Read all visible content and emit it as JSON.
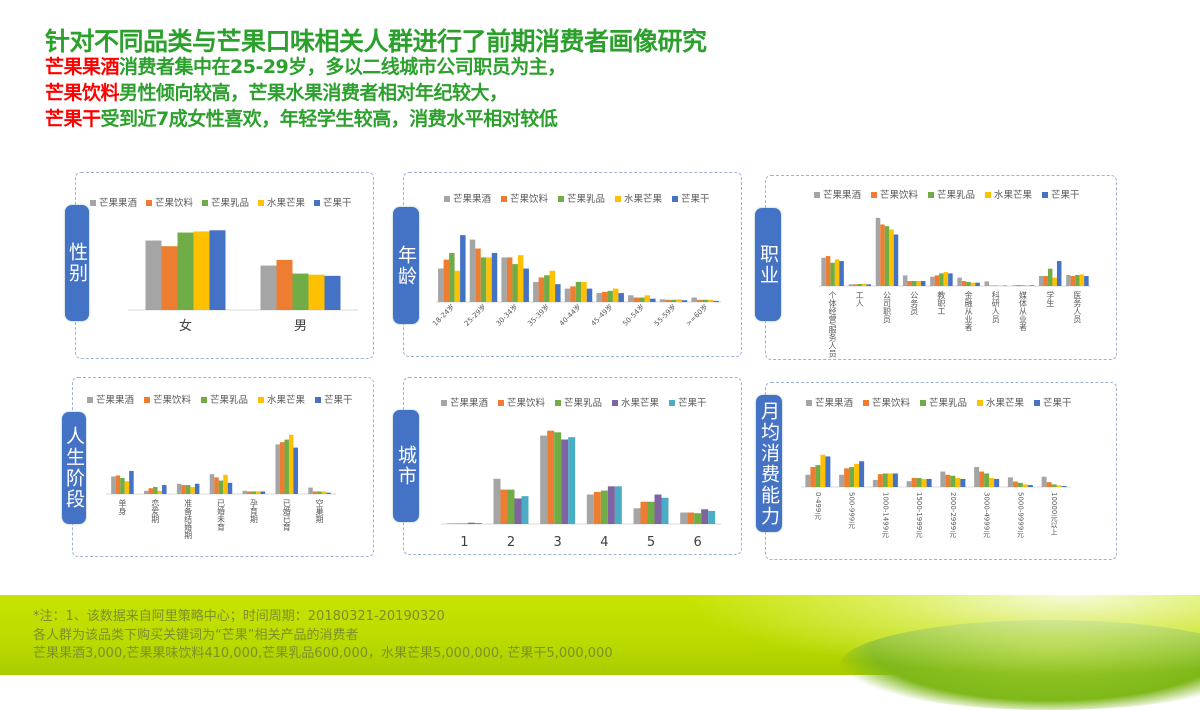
{
  "header": {
    "title": "针对不同品类与芒果口味相关人群进行了前期消费者画像研究",
    "lines": [
      {
        "highlight": "芒果果酒",
        "text": "消费者集中在25-29岁，多以二线城市公司职员为主，"
      },
      {
        "highlight": "芒果饮料",
        "text": "男性倾向较高，芒果水果消费者相对年纪较大，"
      },
      {
        "highlight": "芒果干",
        "text": "受到近7成女性喜欢，年轻学生较高，消费水平相对较低"
      }
    ]
  },
  "colors": {
    "accent_green": "#2ca02c",
    "highlight_red": "#ff0000",
    "tab_blue": "#4472c4",
    "series": [
      "#a5a5a5",
      "#ed7d31",
      "#70ad47",
      "#ffc000",
      "#4472c4"
    ],
    "series_city": [
      "#a5a5a5",
      "#ed7d31",
      "#70ad47",
      "#8064a2",
      "#4bacc6"
    ]
  },
  "chart_data": [
    {
      "id": "gender",
      "panel_label": "性别",
      "type": "bar",
      "legend": "top",
      "categories": [
        "女",
        "男"
      ],
      "series": [
        {
          "name": "芒果果酒",
          "values": [
            61,
            39
          ]
        },
        {
          "name": "芒果饮料",
          "values": [
            56,
            44
          ]
        },
        {
          "name": "芒果乳品",
          "values": [
            68,
            32
          ]
        },
        {
          "name": "水果芒果",
          "values": [
            69,
            31
          ]
        },
        {
          "name": "芒果干",
          "values": [
            70,
            30
          ]
        }
      ]
    },
    {
      "id": "age",
      "panel_label": "年龄",
      "type": "bar",
      "legend": "top",
      "categories": [
        "18-24岁",
        "25-29岁",
        "30-34岁",
        "35-39岁",
        "40-44岁",
        "45-49岁",
        "50-54岁",
        "55-59岁",
        ">=60岁"
      ],
      "series": [
        {
          "name": "芒果果酒",
          "values": [
            15,
            28,
            20,
            9,
            6,
            4,
            3,
            1.2,
            2
          ]
        },
        {
          "name": "芒果饮料",
          "values": [
            19,
            24,
            20,
            11,
            7,
            4.5,
            2,
            1,
            1
          ]
        },
        {
          "name": "芒果乳品",
          "values": [
            22,
            20,
            17,
            12,
            9,
            5,
            2,
            1,
            1
          ]
        },
        {
          "name": "水果芒果",
          "values": [
            14,
            20,
            21,
            14,
            9,
            6,
            3,
            1.2,
            1
          ]
        },
        {
          "name": "芒果干",
          "values": [
            30,
            22,
            15,
            8,
            6,
            4,
            1.5,
            0.8,
            0.5
          ]
        }
      ]
    },
    {
      "id": "occupation",
      "panel_label": "职业",
      "type": "bar",
      "legend": "top",
      "categories": [
        "个体经营/服务人员",
        "工人",
        "公司职员",
        "公务员",
        "教职工",
        "金融从业者",
        "科研人员",
        "媒体从业者",
        "学生",
        "医务人员"
      ],
      "series": [
        {
          "name": "芒果果酒",
          "values": [
            17,
            1,
            41,
            6.4,
            5.6,
            5,
            2.8,
            0.4,
            6,
            6.6
          ]
        },
        {
          "name": "芒果饮料",
          "values": [
            18,
            1,
            37,
            3,
            6.4,
            3,
            0.2,
            0.6,
            6,
            6
          ]
        },
        {
          "name": "芒果乳品",
          "values": [
            14,
            1.2,
            36,
            3,
            7.6,
            2.4,
            0.2,
            0.4,
            10.4,
            6.6
          ]
        },
        {
          "name": "水果芒果",
          "values": [
            16,
            1.4,
            34,
            3,
            8.4,
            2,
            0.2,
            0.4,
            5,
            7
          ]
        },
        {
          "name": "芒果干",
          "values": [
            15,
            1,
            31,
            3,
            7.6,
            2,
            0.2,
            0.4,
            15,
            6
          ]
        }
      ]
    },
    {
      "id": "life_stage",
      "panel_label": "人生阶段",
      "type": "bar",
      "legend": "top",
      "categories": [
        "单身",
        "恋爱期",
        "准备结婚期",
        "已婚未育",
        "孕育期",
        "已婚已育",
        "空巢期"
      ],
      "series": [
        {
          "name": "芒果果酒",
          "values": [
            11,
            2,
            6.4,
            12.4,
            2,
            31,
            4
          ]
        },
        {
          "name": "芒果饮料",
          "values": [
            11.6,
            3.6,
            5.6,
            10.4,
            1.6,
            32.4,
            1.6
          ]
        },
        {
          "name": "芒果乳品",
          "values": [
            10,
            4.4,
            5.6,
            8.4,
            1.6,
            34,
            1.6
          ]
        },
        {
          "name": "水果芒果",
          "values": [
            8,
            2,
            4.4,
            12,
            1.6,
            37,
            1.6
          ]
        },
        {
          "name": "芒果干",
          "values": [
            14.4,
            5.6,
            6.4,
            7,
            1.6,
            29,
            0.8
          ]
        }
      ]
    },
    {
      "id": "city",
      "panel_label": "城市",
      "type": "bar",
      "legend": "top",
      "categories": [
        "1",
        "2",
        "3",
        "4",
        "5",
        "6"
      ],
      "series": [
        {
          "name": "芒果果酒",
          "values": [
            0.2,
            13.8,
            27,
            9,
            4.8,
            3.5
          ]
        },
        {
          "name": "芒果饮料",
          "values": [
            0.2,
            10.5,
            28.5,
            9.8,
            6.8,
            3.5
          ]
        },
        {
          "name": "芒果乳品",
          "values": [
            0.2,
            10.5,
            28,
            10.2,
            6.8,
            3.3
          ]
        },
        {
          "name": "水果芒果",
          "values": [
            0.4,
            7.8,
            25.8,
            11.5,
            9,
            4.5
          ]
        },
        {
          "name": "芒果干",
          "values": [
            0.3,
            8.5,
            26.5,
            11.5,
            8,
            4
          ]
        }
      ]
    },
    {
      "id": "monthly_spend",
      "panel_label": "月均消费能力",
      "type": "bar",
      "legend": "top",
      "categories": [
        "0-499元",
        "500-999元",
        "1000-1499元",
        "1500-1999元",
        "2000-2999元",
        "3000-4999元",
        "5000-9999元",
        "10000元以上"
      ],
      "series": [
        {
          "name": "芒果果酒",
          "values": [
            7.6,
            7.6,
            4.4,
            3.6,
            9.6,
            12.4,
            6,
            6.4
          ]
        },
        {
          "name": "芒果饮料",
          "values": [
            12.4,
            11.6,
            8,
            5.6,
            7.6,
            9.6,
            3.4,
            3
          ]
        },
        {
          "name": "芒果乳品",
          "values": [
            13.6,
            12.4,
            8.4,
            5.6,
            7,
            8.4,
            2.6,
            1.6
          ]
        },
        {
          "name": "水果芒果",
          "values": [
            20,
            14.4,
            8.4,
            5,
            5.6,
            5.6,
            1.6,
            1
          ]
        },
        {
          "name": "芒果干",
          "values": [
            19,
            16,
            8.4,
            5,
            5,
            5,
            1.2,
            0.6
          ]
        }
      ]
    }
  ],
  "footer": {
    "lines": [
      "*注：1、该数据来自阿里策略中心；时间周期：20180321-20190320",
      "各人群为该品类下购买关键词为“芒果”相关产品的消费者",
      "芒果果酒3,000,芒果果味饮料410,000,芒果乳品600,000，水果芒果5,000,000, 芒果干5,000,000"
    ]
  }
}
